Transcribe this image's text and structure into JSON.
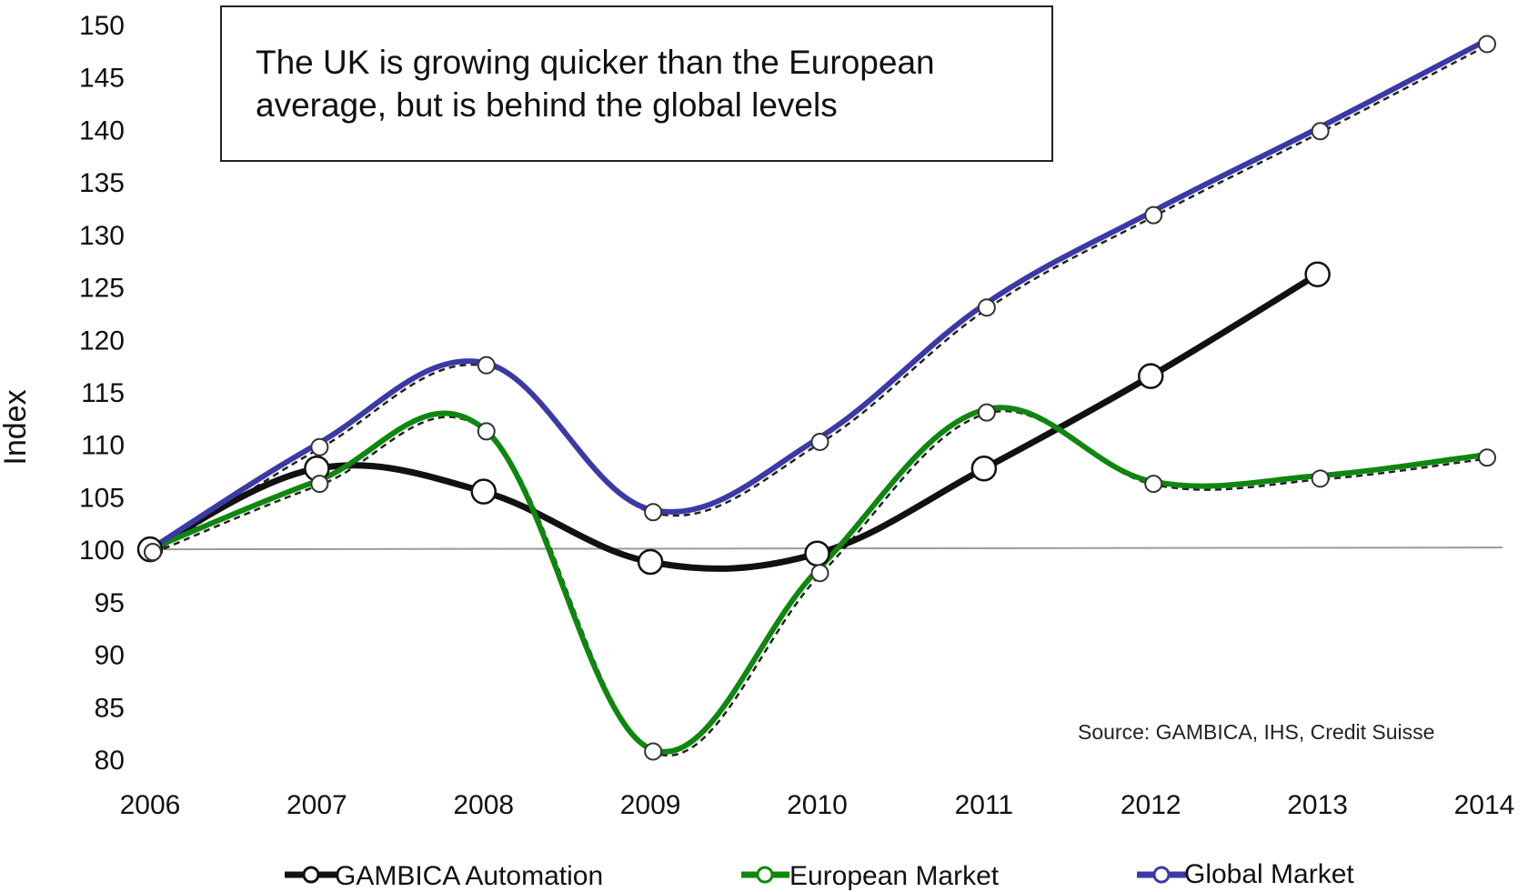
{
  "chart_data": {
    "type": "line",
    "title": "",
    "annotation_lines": [
      "The UK is growing quicker than the European",
      "average, but is behind the global levels"
    ],
    "source": "Source: GAMBICA, IHS, Credit Suisse",
    "xlabel": "",
    "ylabel": "Index",
    "x": [
      "2006",
      "2007",
      "2008",
      "2009",
      "2010",
      "2011",
      "2012",
      "2013",
      "2014"
    ],
    "ylim": [
      80,
      150
    ],
    "yticks": [
      80,
      85,
      90,
      95,
      100,
      105,
      110,
      115,
      120,
      125,
      130,
      135,
      140,
      145,
      150
    ],
    "reference_line": 100,
    "grid": false,
    "legend_position": "bottom",
    "series": [
      {
        "name": "GAMBICA Automation",
        "color": "#111111",
        "values": [
          100,
          107.7,
          105.5,
          98.8,
          99.6,
          107.7,
          116.5,
          126.2,
          null
        ]
      },
      {
        "name": "European Market",
        "color": "#0f870f",
        "values": [
          100,
          106.5,
          111.5,
          81,
          98,
          113.3,
          106.5,
          107,
          109
        ]
      },
      {
        "name": "Global Market",
        "color": "#3a3aa6",
        "values": [
          100,
          110,
          117.8,
          103.8,
          110.5,
          123.3,
          132.1,
          140.1,
          148.4
        ]
      }
    ]
  }
}
